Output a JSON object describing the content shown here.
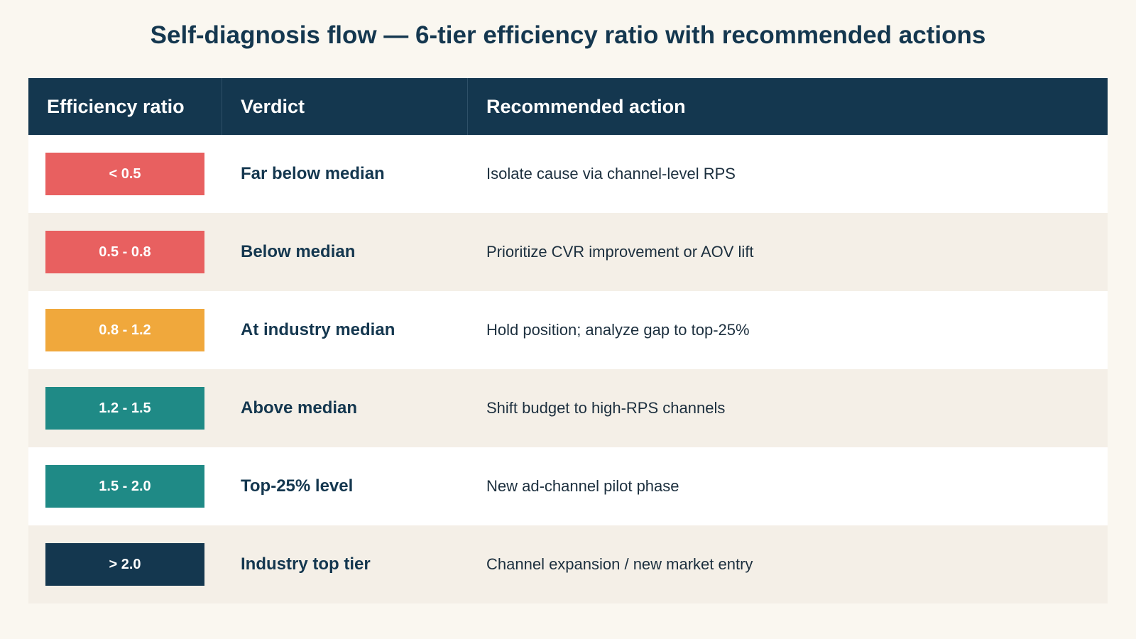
{
  "header": {
    "title": "Self-diagnosis flow — 6-tier efficiency ratio with recommended actions"
  },
  "table": {
    "columns": [
      "Efficiency ratio",
      "Verdict",
      "Recommended action"
    ],
    "rows": [
      {
        "ratio": "< 0.5",
        "color": "#e86060",
        "verdict": "Far below median",
        "action": "Isolate cause via channel-level RPS"
      },
      {
        "ratio": "0.5 - 0.8",
        "color": "#e86060",
        "verdict": "Below median",
        "action": "Prioritize CVR improvement or AOV lift"
      },
      {
        "ratio": "0.8 - 1.2",
        "color": "#f0a83c",
        "verdict": "At industry median",
        "action": "Hold position; analyze gap to top-25%"
      },
      {
        "ratio": "1.2 - 1.5",
        "color": "#1f8a86",
        "verdict": "Above median",
        "action": "Shift budget to high-RPS channels"
      },
      {
        "ratio": "1.5 - 2.0",
        "color": "#1f8a86",
        "verdict": "Top-25% level",
        "action": "New ad-channel pilot phase"
      },
      {
        "ratio": "> 2.0",
        "color": "#14374f",
        "verdict": "Industry top tier",
        "action": "Channel expansion / new market entry"
      }
    ]
  }
}
